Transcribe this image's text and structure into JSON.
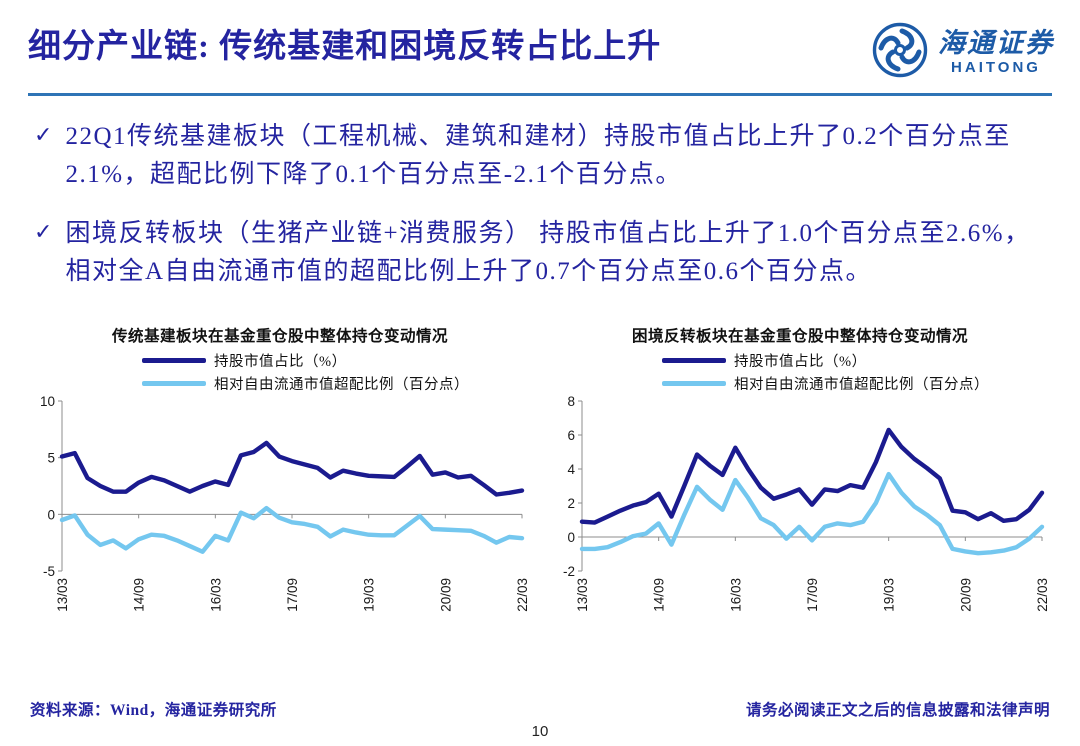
{
  "header": {
    "title": "细分产业链:  传统基建和困境反转占比上升",
    "logo_cn": "海通证券",
    "logo_en": "HAITONG",
    "logo_color": "#1d5ba7"
  },
  "bullets": [
    {
      "mark": "✓",
      "text": "22Q1传统基建板块（工程机械、建筑和建材）持股市值占比上升了0.2个百分点至2.1%，超配比例下降了0.1个百分点至-2.1个百分点。"
    },
    {
      "mark": "✓",
      "text": "困境反转板块（生猪产业链+消费服务） 持股市值占比上升了1.0个百分点至2.6%，相对全A自由流通市值的超配比例上升了0.7个百分点至0.6个百分点。"
    }
  ],
  "chart_data": [
    {
      "type": "line",
      "title": "传统基建板块在基金重仓股中整体持仓变动情况",
      "x_tick_labels": [
        "13/03",
        "14/09",
        "16/03",
        "17/09",
        "19/03",
        "20/09",
        "22/03"
      ],
      "x_tick_indices": [
        0,
        6,
        12,
        18,
        24,
        30,
        36
      ],
      "ylim": [
        -5,
        10
      ],
      "y_ticks": [
        10,
        5,
        0,
        -5
      ],
      "grid": "zero-line-only",
      "legend_position": "top-left",
      "series": [
        {
          "name": "持股市值占比（%）",
          "color": "#1b1b8f",
          "values": [
            5.1,
            5.4,
            3.2,
            2.5,
            2.0,
            2.0,
            2.8,
            3.3,
            3.0,
            2.5,
            2.0,
            2.5,
            2.9,
            2.6,
            5.2,
            5.5,
            6.3,
            5.1,
            4.7,
            4.4,
            4.1,
            3.25,
            3.85,
            3.6,
            3.4,
            3.35,
            3.3,
            4.2,
            5.15,
            3.5,
            3.7,
            3.25,
            3.4,
            2.6,
            1.75,
            1.9,
            2.1
          ]
        },
        {
          "name": "相对自由流通市值超配比例（百分点）",
          "color": "#74c7ef",
          "values": [
            -0.5,
            -0.1,
            -1.8,
            -2.7,
            -2.3,
            -3.0,
            -2.2,
            -1.8,
            -1.9,
            -2.3,
            -2.8,
            -3.3,
            -1.9,
            -2.3,
            0.15,
            -0.35,
            0.55,
            -0.3,
            -0.7,
            -0.85,
            -1.1,
            -1.95,
            -1.35,
            -1.6,
            -1.8,
            -1.85,
            -1.85,
            -1.0,
            -0.15,
            -1.3,
            -1.35,
            -1.4,
            -1.45,
            -1.9,
            -2.5,
            -2.0,
            -2.1
          ]
        }
      ]
    },
    {
      "type": "line",
      "title": "困境反转板块在基金重仓股中整体持仓变动情况",
      "x_tick_labels": [
        "13/03",
        "14/09",
        "16/03",
        "17/09",
        "19/03",
        "20/09",
        "22/03"
      ],
      "x_tick_indices": [
        0,
        6,
        12,
        18,
        24,
        30,
        36
      ],
      "ylim": [
        -2,
        8
      ],
      "y_ticks": [
        8,
        6,
        4,
        2,
        0,
        -2
      ],
      "grid": "zero-line-only",
      "legend_position": "top-left",
      "series": [
        {
          "name": "持股市值占比（%）",
          "color": "#1b1b8f",
          "values": [
            0.9,
            0.85,
            1.2,
            1.55,
            1.85,
            2.05,
            2.55,
            1.2,
            3.0,
            4.85,
            4.2,
            3.65,
            5.25,
            4.0,
            2.9,
            2.25,
            2.5,
            2.8,
            1.9,
            2.8,
            2.7,
            3.05,
            2.9,
            4.4,
            6.3,
            5.3,
            4.6,
            4.05,
            3.45,
            1.55,
            1.45,
            1.05,
            1.4,
            0.95,
            1.05,
            1.6,
            2.6
          ]
        },
        {
          "name": "相对自由流通市值超配比例（百分点）",
          "color": "#74c7ef",
          "values": [
            -0.7,
            -0.7,
            -0.6,
            -0.3,
            0.05,
            0.2,
            0.8,
            -0.45,
            1.3,
            2.95,
            2.2,
            1.6,
            3.35,
            2.3,
            1.1,
            0.7,
            -0.1,
            0.6,
            -0.2,
            0.6,
            0.8,
            0.7,
            0.9,
            2.0,
            3.7,
            2.6,
            1.8,
            1.3,
            0.7,
            -0.7,
            -0.85,
            -0.95,
            -0.9,
            -0.8,
            -0.6,
            -0.1,
            0.6
          ]
        }
      ]
    }
  ],
  "footer": {
    "source": "资料来源：Wind，海通证券研究所",
    "disclaimer": "请务必阅读正文之后的信息披露和法律声明",
    "page": "10"
  }
}
